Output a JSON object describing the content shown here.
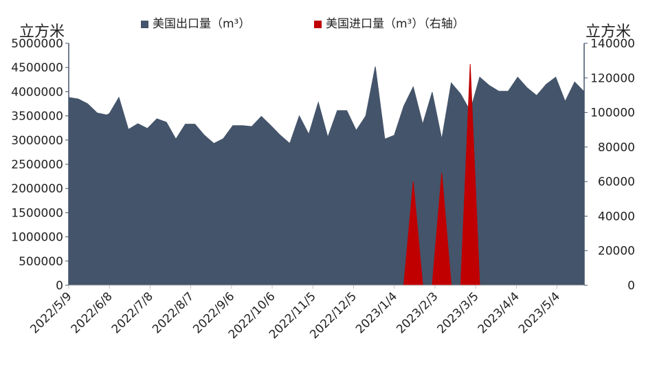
{
  "chart_data": {
    "type": "area",
    "unit_left": "立方米",
    "unit_right": "立方米",
    "legend_placement": "top",
    "grid": false,
    "series": [
      {
        "name": "美国出口量（m³）",
        "axis": "left",
        "color": "#44546a",
        "points": [
          [
            "2022/5/9",
            3880000
          ],
          [
            "2022/5/16",
            3850000
          ],
          [
            "2022/5/23",
            3750000
          ],
          [
            "2022/5/30",
            3560000
          ],
          [
            "2022/6/6",
            3520000
          ],
          [
            "2022/6/8",
            3550000
          ],
          [
            "2022/6/15",
            3880000
          ],
          [
            "2022/6/22",
            3220000
          ],
          [
            "2022/6/29",
            3340000
          ],
          [
            "2022/7/6",
            3240000
          ],
          [
            "2022/7/13",
            3440000
          ],
          [
            "2022/7/20",
            3370000
          ],
          [
            "2022/7/27",
            3020000
          ],
          [
            "2022/8/3",
            3330000
          ],
          [
            "2022/8/10",
            3330000
          ],
          [
            "2022/8/17",
            3100000
          ],
          [
            "2022/8/24",
            2930000
          ],
          [
            "2022/8/31",
            3030000
          ],
          [
            "2022/9/7",
            3300000
          ],
          [
            "2022/9/14",
            3300000
          ],
          [
            "2022/9/21",
            3280000
          ],
          [
            "2022/9/28",
            3490000
          ],
          [
            "2022/10/5",
            3300000
          ],
          [
            "2022/10/12",
            3100000
          ],
          [
            "2022/10/19",
            2930000
          ],
          [
            "2022/10/26",
            3500000
          ],
          [
            "2022/11/2",
            3120000
          ],
          [
            "2022/11/9",
            3780000
          ],
          [
            "2022/11/16",
            3060000
          ],
          [
            "2022/11/23",
            3610000
          ],
          [
            "2022/11/30",
            3610000
          ],
          [
            "2022/12/7",
            3200000
          ],
          [
            "2022/12/14",
            3500000
          ],
          [
            "2022/12/21",
            4520000
          ],
          [
            "2022/12/28",
            3020000
          ],
          [
            "2023/1/4",
            3100000
          ],
          [
            "2023/1/11",
            3700000
          ],
          [
            "2023/1/18",
            4100000
          ],
          [
            "2023/1/25",
            3330000
          ],
          [
            "2023/2/1",
            3990000
          ],
          [
            "2023/2/8",
            3020000
          ],
          [
            "2023/2/15",
            4180000
          ],
          [
            "2023/2/22",
            3950000
          ],
          [
            "2023/3/1",
            3600000
          ],
          [
            "2023/3/8",
            4300000
          ],
          [
            "2023/3/15",
            4130000
          ],
          [
            "2023/3/22",
            4010000
          ],
          [
            "2023/3/29",
            4010000
          ],
          [
            "2023/4/5",
            4300000
          ],
          [
            "2023/4/12",
            4080000
          ],
          [
            "2023/4/19",
            3920000
          ],
          [
            "2023/4/26",
            4150000
          ],
          [
            "2023/5/3",
            4300000
          ],
          [
            "2023/5/10",
            3800000
          ],
          [
            "2023/5/17",
            4200000
          ],
          [
            "2023/5/24",
            4000000
          ]
        ]
      },
      {
        "name": "美国进口量（m³）（右轴）",
        "axis": "right",
        "color": "#c00000",
        "points": [
          [
            "2023/1/11",
            0
          ],
          [
            "2023/1/18",
            60000
          ],
          [
            "2023/1/25",
            0
          ],
          [
            "2023/2/1",
            0
          ],
          [
            "2023/2/8",
            65000
          ],
          [
            "2023/2/15",
            0
          ],
          [
            "2023/2/22",
            0
          ],
          [
            "2023/3/1",
            128000
          ],
          [
            "2023/3/8",
            0
          ]
        ]
      }
    ],
    "x_range": [
      "2022/5/9",
      "2023/5/24"
    ],
    "x_ticks": [
      "2022/5/9",
      "2022/6/8",
      "2022/7/8",
      "2022/8/7",
      "2022/9/6",
      "2022/10/6",
      "2022/11/5",
      "2022/12/5",
      "2023/1/4",
      "2023/2/3",
      "2023/3/5",
      "2023/4/4",
      "2023/5/4"
    ],
    "y_left": {
      "min": 0,
      "max": 5000000,
      "ticks": [
        "0",
        "500000",
        "1000000",
        "1500000",
        "2000000",
        "2500000",
        "3000000",
        "3500000",
        "4000000",
        "4500000",
        "5000000"
      ]
    },
    "y_right": {
      "min": 0,
      "max": 140000,
      "ticks": [
        "0",
        "20000",
        "40000",
        "60000",
        "80000",
        "100000",
        "120000",
        "140000"
      ]
    }
  }
}
